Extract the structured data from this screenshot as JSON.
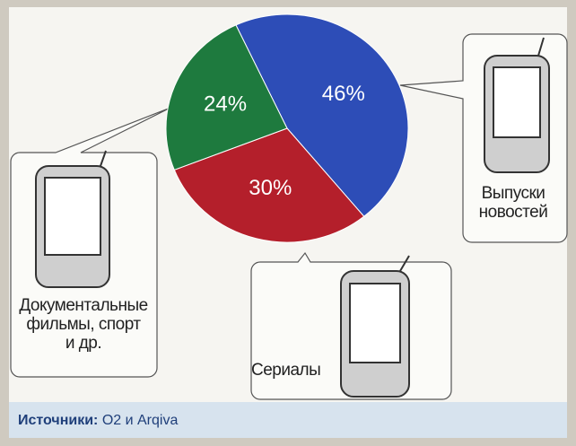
{
  "chart_data": {
    "type": "pie",
    "categories": [
      "Выпуски\nновостей",
      "Сериалы",
      "Документальные\nфильмы, спорт\nи др."
    ],
    "values": [
      46,
      30,
      24
    ],
    "value_labels": [
      "46%",
      "30%",
      "24%"
    ],
    "colors": [
      "#2d4db7",
      "#b41f2b",
      "#1e7a3e"
    ],
    "source_label": "Источники:",
    "source": "O2 и Arqiva"
  }
}
